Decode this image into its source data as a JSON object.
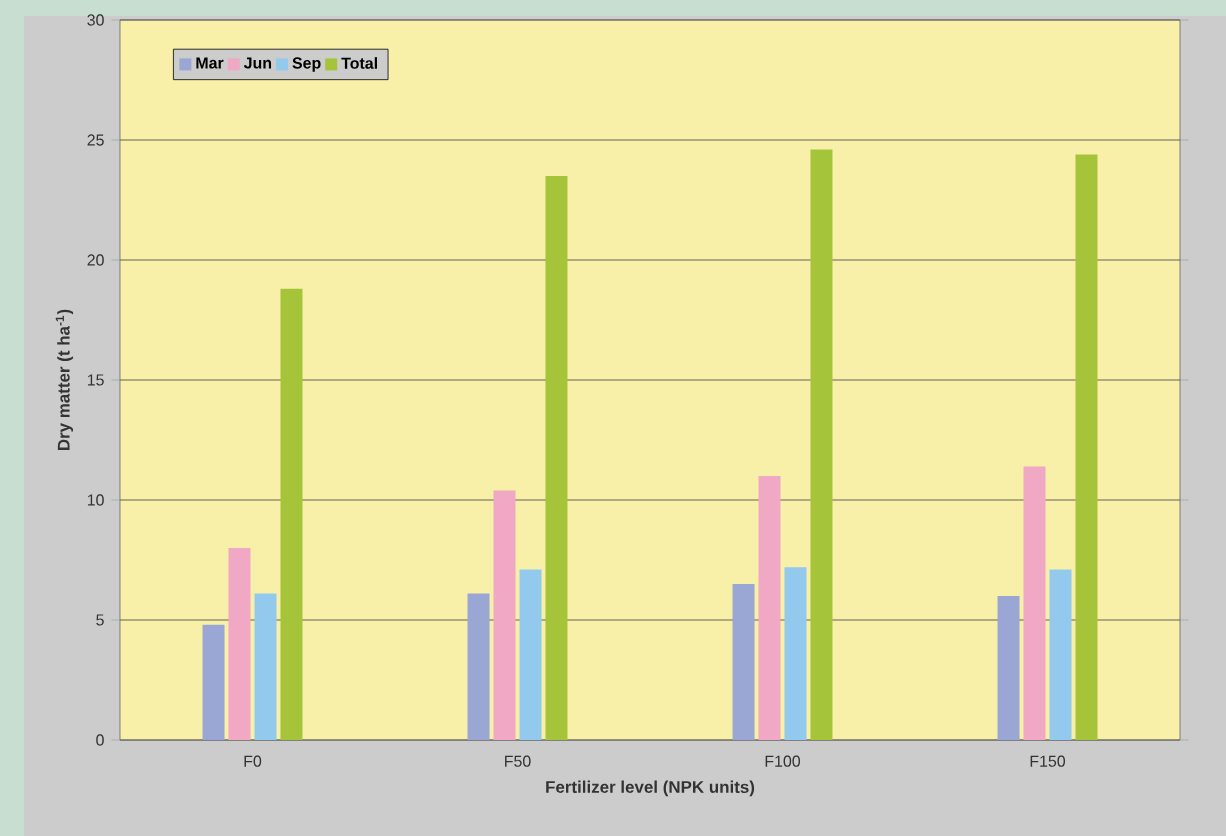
{
  "chart_data": {
    "type": "bar",
    "categories": [
      "F0",
      "F50",
      "F100",
      "F150"
    ],
    "series": [
      {
        "name": "Mar",
        "color": "#9aa6d4",
        "values": [
          4.8,
          6.1,
          6.5,
          6.0
        ]
      },
      {
        "name": "Jun",
        "color": "#f0a8c4",
        "values": [
          8.0,
          10.4,
          11.0,
          11.4
        ]
      },
      {
        "name": "Sep",
        "color": "#94c9ee",
        "values": [
          6.1,
          7.1,
          7.2,
          7.1
        ]
      },
      {
        "name": "Total",
        "color": "#a6c43a",
        "values": [
          18.8,
          23.5,
          24.6,
          24.4
        ]
      }
    ],
    "xlabel": "Fertilizer level (NPK units)",
    "ylabel": "Dry matter (t ha$^{-1}$)",
    "ylim": [
      0,
      30
    ],
    "yticks": [
      0,
      5,
      10,
      15,
      20,
      25,
      30
    ],
    "grid": "y",
    "legend": "top left"
  }
}
